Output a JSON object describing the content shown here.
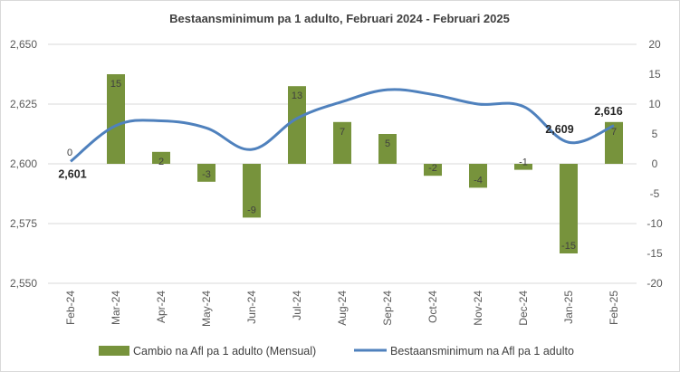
{
  "chart_data": {
    "type": "bar+line",
    "title": "Bestaansminimum pa 1 adulto, Februari 2024 - Februari 2025",
    "categories": [
      "Feb-24",
      "Mar-24",
      "Apr-24",
      "May-24",
      "Jun-24",
      "Jul-24",
      "Aug-24",
      "Sep-24",
      "Oct-24",
      "Nov-24",
      "Dec-24",
      "Jan-25",
      "Feb-25"
    ],
    "series": [
      {
        "name": "Cambio na Afl pa 1 adulto (Mensual)",
        "type": "bar",
        "axis": "right",
        "color": "#77933c",
        "values": [
          0,
          15,
          2,
          -3,
          -9,
          13,
          7,
          5,
          -2,
          -4,
          -1,
          -15,
          7
        ],
        "labels": [
          "0",
          "15",
          "2",
          "-3",
          "-9",
          "13",
          "7",
          "5",
          "-2",
          "-4",
          "-1",
          "-15",
          "7"
        ]
      },
      {
        "name": "Bestaansminimum na Afl pa 1 adulto",
        "type": "line",
        "axis": "left",
        "color": "#4f81bd",
        "values": [
          2601,
          2616,
          2618,
          2615,
          2606,
          2619,
          2626,
          2631,
          2629,
          2625,
          2624,
          2609,
          2616
        ],
        "point_labels": [
          {
            "index": 0,
            "text": "2,601"
          },
          {
            "index": 11,
            "text": "2,609"
          },
          {
            "index": 12,
            "text": "2,616"
          }
        ]
      }
    ],
    "left_axis": {
      "min": 2550,
      "max": 2650,
      "ticks": [
        "2,650",
        "2,625",
        "2,600",
        "2,575",
        "2,550"
      ]
    },
    "right_axis": {
      "min": -20,
      "max": 20,
      "ticks": [
        "20",
        "15",
        "10",
        "5",
        "0",
        "-5",
        "-10",
        "-15",
        "-20"
      ]
    },
    "grid": true,
    "legend_position": "bottom"
  }
}
